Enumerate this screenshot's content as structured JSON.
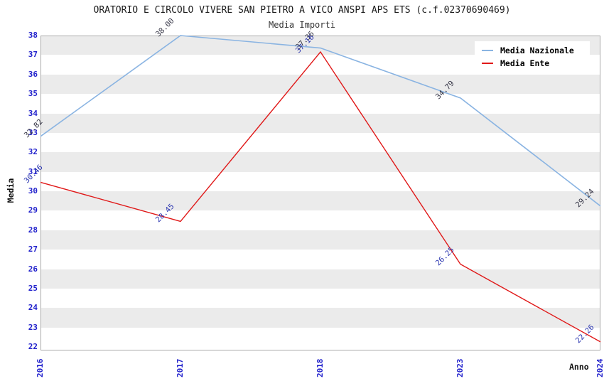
{
  "title": "ORATORIO E CIRCOLO VIVERE SAN PIETRO A VICO ANSPI APS ETS (c.f.02370690469)",
  "subtitle": "Media Importi",
  "chart_data": {
    "type": "line",
    "categories": [
      "2016",
      "2017",
      "2018",
      "2023",
      "2024"
    ],
    "series": [
      {
        "name": "Media Nazionale",
        "color": "#8ab4e2",
        "label_color": "#333344",
        "values": [
          32.82,
          38.0,
          37.36,
          34.79,
          29.24
        ]
      },
      {
        "name": "Media Ente",
        "color": "#e01818",
        "label_color": "#2a35b0",
        "values": [
          30.46,
          28.45,
          37.16,
          26.25,
          22.26
        ]
      }
    ],
    "xlabel": "Anno",
    "ylabel": "Media",
    "ylim": [
      22,
      38
    ],
    "ytick_step": 1,
    "grid": "alternating-horizontal-bands",
    "band_color": "#ebebeb",
    "tick_label_color": "#2222cc",
    "legend_position": "top-right",
    "point_labels": "values shown rotated 45deg at each point, 2 decimals"
  }
}
